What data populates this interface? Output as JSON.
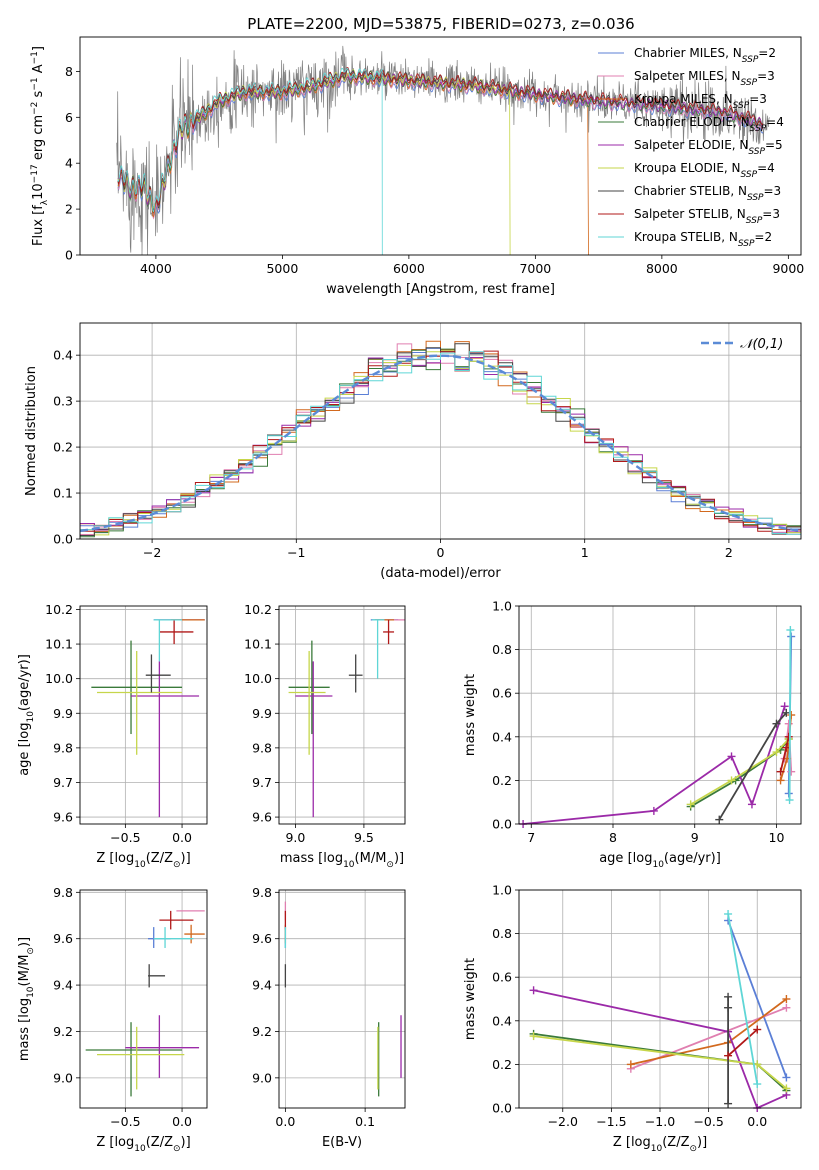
{
  "title": "PLATE=2200, MJD=53875, FIBERID=0273, z=0.036",
  "colors": {
    "chab_miles": "#5b7fd6",
    "salp_miles": "#e07fb0",
    "krou_miles": "#d2691e",
    "chab_elodie": "#3a7a3a",
    "salp_elodie": "#9b2aa8",
    "krou_elodie": "#c6d64a",
    "chab_stelib": "#444444",
    "salp_stelib": "#b01818",
    "krou_stelib": "#5fd6d6",
    "data": "#808080",
    "gauss": "#5b8bd6",
    "grid": "#b0b0b0"
  },
  "chart_data": [
    {
      "id": "spectrum",
      "type": "line",
      "xlabel": "wavelength [Angstrom, rest frame]",
      "ylabel": "Flux [f_λ10^-17 erg cm^-2 s^-1 A^-1]",
      "xlim": [
        3400,
        9100
      ],
      "ylim": [
        0,
        9.5
      ],
      "xticks": [
        4000,
        5000,
        6000,
        7000,
        8000,
        9000
      ],
      "yticks": [
        0,
        2,
        4,
        6,
        8
      ],
      "legend": [
        "Chabrier MILES, N_SSP=2",
        "Salpeter MILES, N_SSP=3",
        "Kroupa MILES, N_SSP=3",
        "Chabrier ELODIE, N_SSP=4",
        "Salpeter ELODIE, N_SSP=5",
        "Kroupa ELODIE, N_SSP=4",
        "Chabrier STELIB, N_SSP=3",
        "Salpeter STELIB, N_SSP=3",
        "Kroupa STELIB, N_SSP=2"
      ],
      "legend_position": "top-right",
      "model_continuum": {
        "x": [
          3700,
          3800,
          3900,
          4000,
          4100,
          4200,
          4300,
          4500,
          4700,
          5000,
          5200,
          5500,
          6000,
          6500,
          7000,
          7500,
          8000,
          8500,
          8800
        ],
        "y": [
          3.5,
          2.9,
          3.0,
          2.0,
          3.9,
          5.5,
          5.8,
          6.7,
          7.1,
          7.1,
          7.3,
          7.8,
          7.6,
          7.4,
          7.0,
          6.7,
          6.5,
          6.2,
          5.7
        ]
      },
      "model_dropouts": [
        {
          "series": "Kroupa STELIB",
          "x": 5790
        },
        {
          "series": "Kroupa ELODIE",
          "x": 6800
        },
        {
          "series": "Kroupa MILES",
          "x": 7420
        }
      ]
    },
    {
      "id": "residuals",
      "type": "step",
      "xlabel": "(data-model)/error",
      "ylabel": "Normed distribution",
      "xlim": [
        -2.5,
        2.5
      ],
      "ylim": [
        0,
        0.47
      ],
      "xticks": [
        -2,
        -1,
        0,
        1,
        2
      ],
      "yticks": [
        0.0,
        0.1,
        0.2,
        0.3,
        0.4
      ],
      "legend": [
        "𝒩(0,1)"
      ],
      "legend_position": "top-right",
      "bin_width": 0.1,
      "reference": "N(0,1) gaussian"
    },
    {
      "id": "z_age",
      "type": "errorbar",
      "xlabel": "Z [log10(Z/Z_sun)]",
      "ylabel": "age  [log10(age/yr)]",
      "xlim": [
        -0.9,
        0.22
      ],
      "ylim": [
        9.58,
        10.21
      ],
      "xticks": [
        -0.5,
        0.0
      ],
      "yticks": [
        9.6,
        9.7,
        9.8,
        9.9,
        10.0,
        10.1,
        10.2
      ],
      "points": [
        {
          "c": "chab_miles",
          "x": 0.0,
          "xl": -0.25,
          "xh": 0.2,
          "y": 10.17,
          "yl": 10.17,
          "yh": 10.17
        },
        {
          "c": "salp_miles",
          "x": 0.03,
          "xl": -0.2,
          "xh": 0.2,
          "y": 10.17,
          "yl": 10.17,
          "yh": 10.17
        },
        {
          "c": "krou_miles",
          "x": 0.08,
          "xl": -0.1,
          "xh": 0.2,
          "y": 10.17,
          "yl": 10.17,
          "yh": 10.17
        },
        {
          "c": "chab_elodie",
          "x": -0.45,
          "xl": -0.8,
          "xh": 0.0,
          "y": 9.975,
          "yl": 9.84,
          "yh": 10.11
        },
        {
          "c": "salp_elodie",
          "x": -0.2,
          "xl": -0.45,
          "xh": 0.15,
          "y": 9.95,
          "yl": 9.6,
          "yh": 10.05
        },
        {
          "c": "krou_elodie",
          "x": -0.4,
          "xl": -0.75,
          "xh": 0.0,
          "y": 9.96,
          "yl": 9.78,
          "yh": 10.08
        },
        {
          "c": "chab_stelib",
          "x": -0.27,
          "xl": -0.32,
          "xh": -0.1,
          "y": 10.01,
          "yl": 9.96,
          "yh": 10.07
        },
        {
          "c": "salp_stelib",
          "x": -0.07,
          "xl": -0.2,
          "xh": 0.1,
          "y": 10.135,
          "yl": 10.1,
          "yh": 10.17
        },
        {
          "c": "krou_stelib",
          "x": -0.2,
          "xl": -0.25,
          "xh": 0.0,
          "y": 10.17,
          "yl": 10.05,
          "yh": 10.17
        }
      ]
    },
    {
      "id": "mass_age",
      "type": "errorbar",
      "xlabel": "mass [log10(M/M_sun)]",
      "ylabel": "",
      "xlim": [
        8.88,
        9.8
      ],
      "ylim": [
        9.58,
        10.21
      ],
      "xticks": [
        9.0,
        9.5
      ],
      "yticks": [
        9.6,
        9.7,
        9.8,
        9.9,
        10.0,
        10.1,
        10.2
      ],
      "points": [
        {
          "c": "chab_miles",
          "x": 9.6,
          "xl": 9.55,
          "xh": 9.75,
          "y": 10.17,
          "yl": 10.17,
          "yh": 10.17
        },
        {
          "c": "salp_miles",
          "x": 9.72,
          "xl": 9.62,
          "xh": 9.8,
          "y": 10.17,
          "yl": 10.17,
          "yh": 10.17
        },
        {
          "c": "krou_miles",
          "x": 9.62,
          "xl": 9.58,
          "xh": 9.72,
          "y": 10.17,
          "yl": 10.17,
          "yh": 10.17
        },
        {
          "c": "chab_elodie",
          "x": 9.12,
          "xl": 8.95,
          "xh": 9.25,
          "y": 9.975,
          "yl": 9.84,
          "yh": 10.11
        },
        {
          "c": "salp_elodie",
          "x": 9.13,
          "xl": 9.0,
          "xh": 9.27,
          "y": 9.95,
          "yl": 9.6,
          "yh": 10.05
        },
        {
          "c": "krou_elodie",
          "x": 9.1,
          "xl": 8.95,
          "xh": 9.22,
          "y": 9.96,
          "yl": 9.78,
          "yh": 10.08
        },
        {
          "c": "chab_stelib",
          "x": 9.44,
          "xl": 9.39,
          "xh": 9.49,
          "y": 10.01,
          "yl": 9.96,
          "yh": 10.07
        },
        {
          "c": "salp_stelib",
          "x": 9.68,
          "xl": 9.64,
          "xh": 9.72,
          "y": 10.135,
          "yl": 10.1,
          "yh": 10.17
        },
        {
          "c": "krou_stelib",
          "x": 9.6,
          "xl": 9.56,
          "xh": 9.65,
          "y": 10.17,
          "yl": 10.0,
          "yh": 10.17
        }
      ]
    },
    {
      "id": "age_weight",
      "type": "line",
      "xlabel": "age  [log10(age/yr)]",
      "ylabel": "mass weight",
      "xlim": [
        6.85,
        10.3
      ],
      "ylim": [
        0,
        1.0
      ],
      "xticks": [
        7,
        8,
        9,
        10
      ],
      "yticks": [
        0.0,
        0.2,
        0.4,
        0.6,
        0.8,
        1.0
      ],
      "series": [
        {
          "c": "chab_miles",
          "x": [
            10.15,
            10.18
          ],
          "y": [
            0.14,
            0.86
          ]
        },
        {
          "c": "salp_miles",
          "x": [
            10.1,
            10.15,
            10.18
          ],
          "y": [
            0.3,
            0.46,
            0.24
          ]
        },
        {
          "c": "krou_miles",
          "x": [
            10.05,
            10.13,
            10.18
          ],
          "y": [
            0.2,
            0.3,
            0.5
          ]
        },
        {
          "c": "chab_elodie",
          "x": [
            8.95,
            9.5,
            10.05,
            10.15
          ],
          "y": [
            0.08,
            0.2,
            0.34,
            0.39
          ]
        },
        {
          "c": "salp_elodie",
          "x": [
            6.9,
            8.5,
            9.45,
            9.7,
            10.1
          ],
          "y": [
            0.0,
            0.06,
            0.31,
            0.09,
            0.54
          ]
        },
        {
          "c": "krou_elodie",
          "x": [
            8.95,
            9.45,
            10.0,
            10.15
          ],
          "y": [
            0.09,
            0.2,
            0.33,
            0.39
          ]
        },
        {
          "c": "chab_stelib",
          "x": [
            9.3,
            10.0,
            10.12
          ],
          "y": [
            0.02,
            0.46,
            0.51
          ]
        },
        {
          "c": "salp_stelib",
          "x": [
            10.05,
            10.12,
            10.15
          ],
          "y": [
            0.24,
            0.35,
            0.4
          ]
        },
        {
          "c": "krou_stelib",
          "x": [
            10.16,
            10.17
          ],
          "y": [
            0.11,
            0.89
          ]
        }
      ]
    },
    {
      "id": "z_mass",
      "type": "errorbar",
      "xlabel": "Z [log10(Z/Z_sun)]",
      "ylabel": "mass [log10(M/M_sun)]",
      "xlim": [
        -0.9,
        0.22
      ],
      "ylim": [
        8.87,
        9.81
      ],
      "xticks": [
        -0.5,
        0.0
      ],
      "yticks": [
        9.0,
        9.2,
        9.4,
        9.6,
        9.8
      ],
      "points": [
        {
          "c": "chab_miles",
          "x": -0.25,
          "xl": -0.3,
          "xh": -0.1,
          "y": 9.6,
          "yl": 9.56,
          "yh": 9.65
        },
        {
          "c": "salp_miles",
          "x": 0.08,
          "xl": -0.05,
          "xh": 0.2,
          "y": 9.72,
          "yl": 9.72,
          "yh": 9.72
        },
        {
          "c": "krou_miles",
          "x": 0.08,
          "xl": 0.02,
          "xh": 0.2,
          "y": 9.62,
          "yl": 9.58,
          "yh": 9.66
        },
        {
          "c": "chab_elodie",
          "x": -0.45,
          "xl": -0.85,
          "xh": 0.0,
          "y": 9.12,
          "yl": 8.92,
          "yh": 9.24
        },
        {
          "c": "salp_elodie",
          "x": -0.2,
          "xl": -0.5,
          "xh": 0.15,
          "y": 9.13,
          "yl": 9.0,
          "yh": 9.27
        },
        {
          "c": "krou_elodie",
          "x": -0.4,
          "xl": -0.75,
          "xh": 0.02,
          "y": 9.1,
          "yl": 8.95,
          "yh": 9.22
        },
        {
          "c": "chab_stelib",
          "x": -0.29,
          "xl": -0.3,
          "xh": -0.15,
          "y": 9.44,
          "yl": 9.39,
          "yh": 9.49
        },
        {
          "c": "salp_stelib",
          "x": -0.1,
          "xl": -0.2,
          "xh": 0.1,
          "y": 9.68,
          "yl": 9.64,
          "yh": 9.72
        },
        {
          "c": "krou_stelib",
          "x": -0.15,
          "xl": -0.25,
          "xh": 0.1,
          "y": 9.6,
          "yl": 9.56,
          "yh": 9.65
        }
      ]
    },
    {
      "id": "ebv_mass",
      "type": "errorbar",
      "xlabel": "E(B-V)",
      "ylabel": "",
      "xlim": [
        -0.008,
        0.15
      ],
      "ylim": [
        8.87,
        9.81
      ],
      "xticks": [
        0.0,
        0.1
      ],
      "yticks": [
        9.0,
        9.2,
        9.4,
        9.6,
        9.8
      ],
      "points": [
        {
          "c": "chab_miles",
          "x": 0.0,
          "xl": 0.0,
          "xh": 0.0,
          "y": 9.6,
          "yl": 9.56,
          "yh": 9.65
        },
        {
          "c": "salp_miles",
          "x": 0.0,
          "xl": 0.0,
          "xh": 0.0,
          "y": 9.72,
          "yl": 9.68,
          "yh": 9.76
        },
        {
          "c": "krou_miles",
          "x": 0.0,
          "xl": 0.0,
          "xh": 0.0,
          "y": 9.62,
          "yl": 9.58,
          "yh": 9.66
        },
        {
          "c": "chab_elodie",
          "x": 0.117,
          "xl": 0.117,
          "xh": 0.117,
          "y": 9.12,
          "yl": 8.92,
          "yh": 9.24
        },
        {
          "c": "salp_elodie",
          "x": 0.145,
          "xl": 0.145,
          "xh": 0.145,
          "y": 9.13,
          "yl": 9.0,
          "yh": 9.27
        },
        {
          "c": "krou_elodie",
          "x": 0.116,
          "xl": 0.116,
          "xh": 0.116,
          "y": 9.1,
          "yl": 8.95,
          "yh": 9.22
        },
        {
          "c": "chab_stelib",
          "x": 0.0,
          "xl": 0.0,
          "xh": 0.0,
          "y": 9.44,
          "yl": 9.39,
          "yh": 9.49
        },
        {
          "c": "salp_stelib",
          "x": 0.0,
          "xl": 0.0,
          "xh": 0.0,
          "y": 9.68,
          "yl": 9.64,
          "yh": 9.72
        },
        {
          "c": "krou_stelib",
          "x": 0.0,
          "xl": 0.0,
          "xh": 0.0,
          "y": 9.6,
          "yl": 9.56,
          "yh": 9.65
        }
      ]
    },
    {
      "id": "z_weight",
      "type": "line",
      "xlabel": "Z [log10(Z/Z_sun)]",
      "ylabel": "mass weight",
      "xlim": [
        -2.45,
        0.45
      ],
      "ylim": [
        0,
        1.0
      ],
      "xticks": [
        -2.0,
        -1.5,
        -1.0,
        -0.5,
        0.0
      ],
      "yticks": [
        0.0,
        0.2,
        0.4,
        0.6,
        0.8,
        1.0
      ],
      "series": [
        {
          "c": "chab_miles",
          "x": [
            -0.3,
            0.3
          ],
          "y": [
            0.86,
            0.14
          ]
        },
        {
          "c": "salp_miles",
          "x": [
            -1.3,
            0.3
          ],
          "y": [
            0.18,
            0.46
          ]
        },
        {
          "c": "krou_miles",
          "x": [
            -1.3,
            -0.3,
            0.3
          ],
          "y": [
            0.2,
            0.3,
            0.5
          ]
        },
        {
          "c": "chab_elodie",
          "x": [
            -2.3,
            0.0,
            0.3
          ],
          "y": [
            0.34,
            0.2,
            0.08
          ]
        },
        {
          "c": "salp_elodie",
          "x": [
            -2.3,
            -0.3,
            0.0,
            0.3
          ],
          "y": [
            0.54,
            0.35,
            0.0,
            0.06
          ]
        },
        {
          "c": "krou_elodie",
          "x": [
            -2.3,
            0.0,
            0.3
          ],
          "y": [
            0.33,
            0.2,
            0.09
          ]
        },
        {
          "c": "chab_stelib",
          "x": [
            -0.3,
            -0.3,
            -0.3
          ],
          "y": [
            0.02,
            0.46,
            0.51
          ]
        },
        {
          "c": "salp_stelib",
          "x": [
            -0.3,
            0.0
          ],
          "y": [
            0.24,
            0.36
          ]
        },
        {
          "c": "krou_stelib",
          "x": [
            -0.3,
            0.0
          ],
          "y": [
            0.89,
            0.11
          ]
        }
      ]
    }
  ]
}
